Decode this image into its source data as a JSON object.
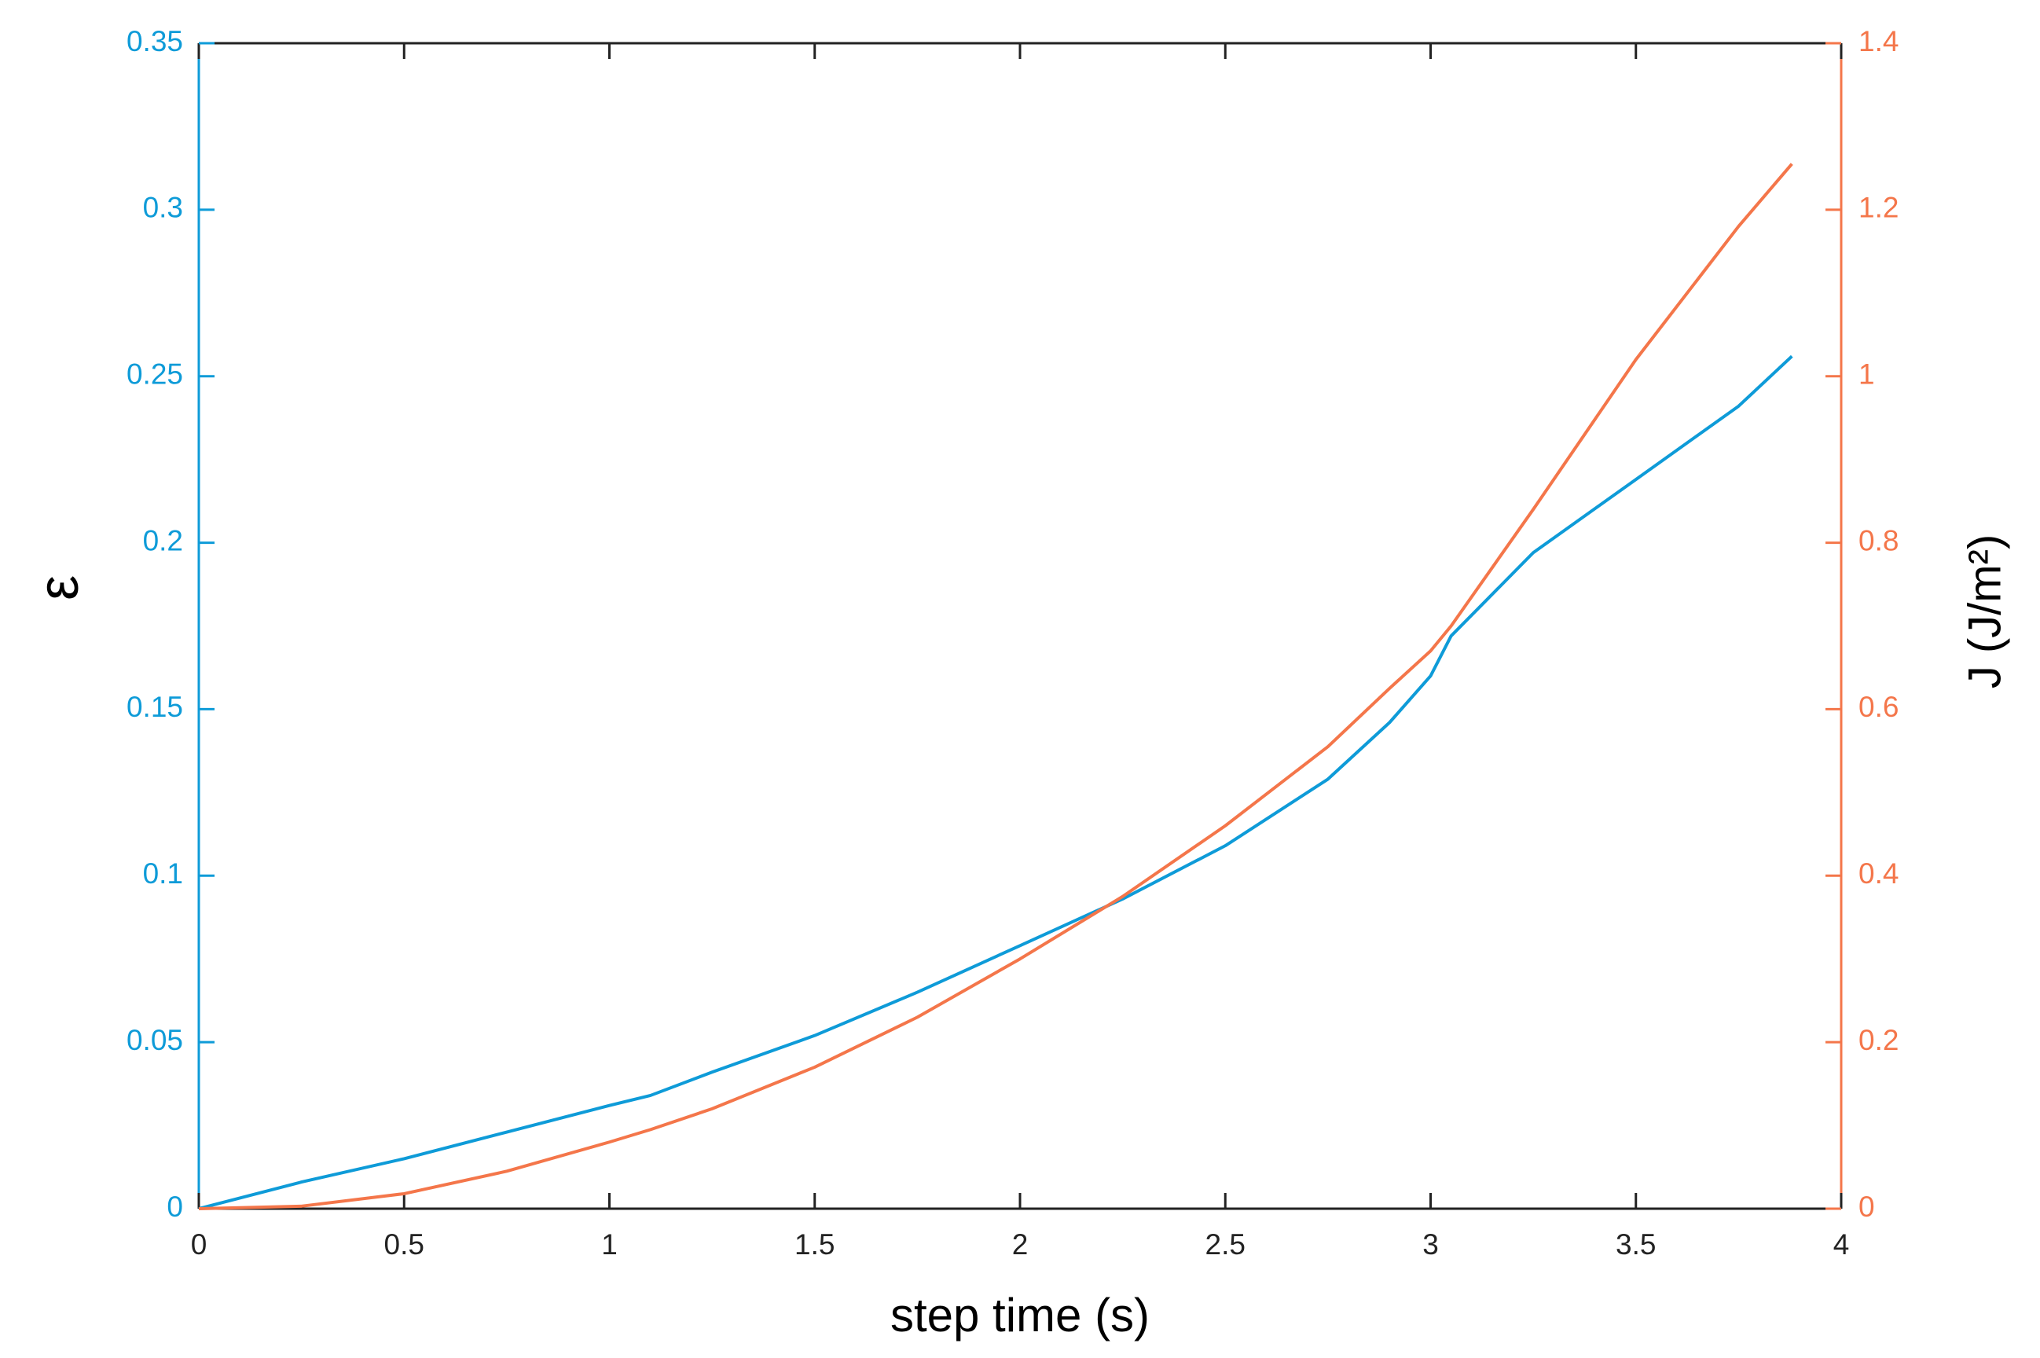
{
  "chart_data": {
    "type": "line",
    "xlabel": "step time (s)",
    "ylabel": "ε",
    "y2label": "J  (J/m²)",
    "x": [
      0,
      0.25,
      0.5,
      0.75,
      1,
      1.1,
      1.25,
      1.5,
      1.75,
      2,
      2.25,
      2.5,
      2.75,
      2.9,
      3,
      3.05,
      3.25,
      3.5,
      3.75,
      3.88
    ],
    "series": [
      {
        "color": "#0e9bd8",
        "values": [
          0,
          0.008,
          0.015,
          0.023,
          0.031,
          0.034,
          0.041,
          0.052,
          0.065,
          0.079,
          0.093,
          0.109,
          0.129,
          0.146,
          0.16,
          0.172,
          0.197,
          0.219,
          0.241,
          0.256
        ]
      },
      {
        "color": "#f4764a",
        "axis": "y2",
        "values": [
          0,
          0.003,
          0.018,
          0.045,
          0.08,
          0.095,
          0.12,
          0.17,
          0.23,
          0.3,
          0.375,
          0.46,
          0.555,
          0.625,
          0.67,
          0.7,
          0.84,
          1.02,
          1.18,
          1.255
        ]
      }
    ],
    "xlim": [
      0,
      4
    ],
    "xticks": [
      0,
      0.5,
      1,
      1.5,
      2,
      2.5,
      3,
      3.5,
      4
    ],
    "ylim": [
      0,
      0.35
    ],
    "yticks": [
      0,
      0.05,
      0.1,
      0.15,
      0.2,
      0.25,
      0.3,
      0.35
    ],
    "y2lim": [
      0,
      1.4
    ],
    "y2ticks": [
      0,
      0.2,
      0.4,
      0.6,
      0.8,
      1,
      1.2,
      1.4
    ],
    "grid": false
  }
}
